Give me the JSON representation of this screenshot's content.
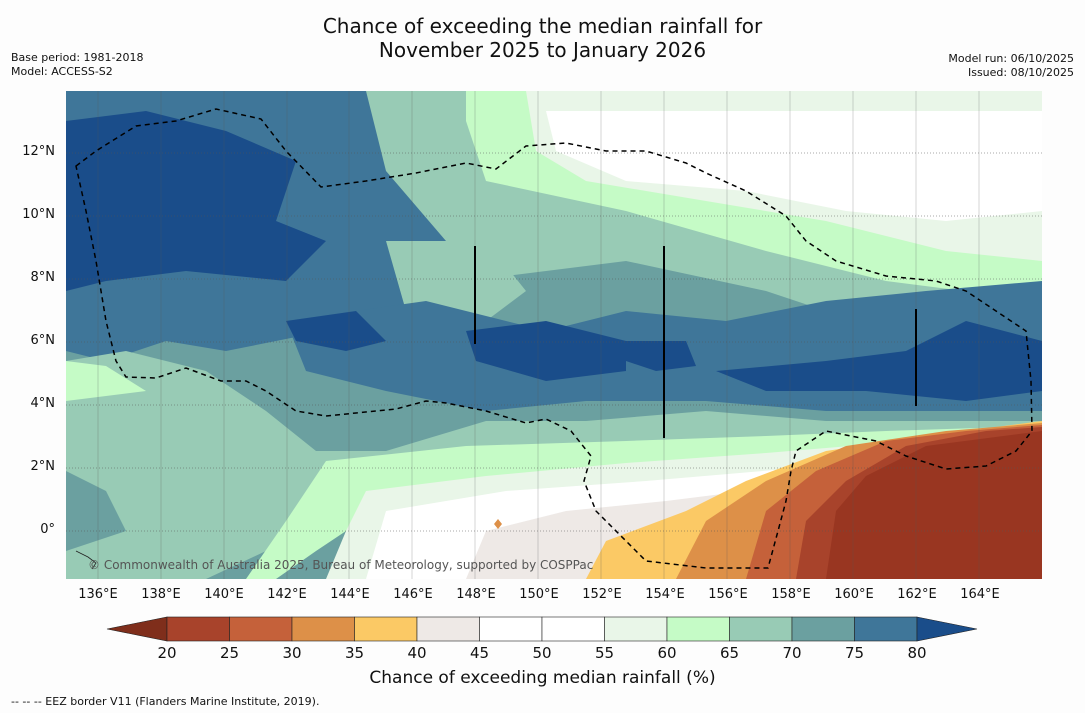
{
  "title_line1": "Chance of exceeding the median rainfall for",
  "title_line2": "November 2025 to January 2026",
  "base_period": "Base period: 1981-2018",
  "model": "Model: ACCESS-S2",
  "model_run": "Model run: 06/10/2025",
  "issued": "Issued: 08/10/2025",
  "copyright": "© Commonwealth of Australia 2025, Bureau of Meteorology, supported by COSPPac",
  "x_ticks": [
    "136°E",
    "138°E",
    "140°E",
    "142°E",
    "144°E",
    "146°E",
    "148°E",
    "150°E",
    "152°E",
    "154°E",
    "156°E",
    "158°E",
    "160°E",
    "162°E",
    "164°E"
  ],
  "y_ticks": [
    "12°N",
    "10°N",
    "8°N",
    "6°N",
    "4°N",
    "2°N",
    "0°"
  ],
  "colorbar": {
    "label": "Chance of exceeding median rainfall (%)",
    "ticks": [
      "20",
      "25",
      "30",
      "35",
      "40",
      "45",
      "50",
      "55",
      "60",
      "65",
      "70",
      "75",
      "80"
    ],
    "colors": [
      "#7f2e1b",
      "#a8432b",
      "#c5613a",
      "#dd9048",
      "#fbc965",
      "#eee9e6",
      "#ffffff",
      "#ffffff",
      "#e9f6e8",
      "#c5fbc6",
      "#98cbb5",
      "#6ba0a0",
      "#3f7699",
      "#1a4d8a"
    ]
  },
  "footer": "--  --  -- EEZ border V11 (Flanders Marine Institute, 2019).",
  "map_colors": {
    "band_20": "#993621",
    "band_25": "#a8432b",
    "band_30": "#c5613a",
    "band_35": "#dd9048",
    "band_40": "#fbc965",
    "band_45": "#eee9e6",
    "band_50": "#ffffff",
    "band_60": "#e9f6e8",
    "band_65": "#c5fbc6",
    "band_70": "#98cbb5",
    "band_75": "#6ba0a0",
    "band_80": "#3f7699",
    "band_85": "#1a4d8a"
  }
}
